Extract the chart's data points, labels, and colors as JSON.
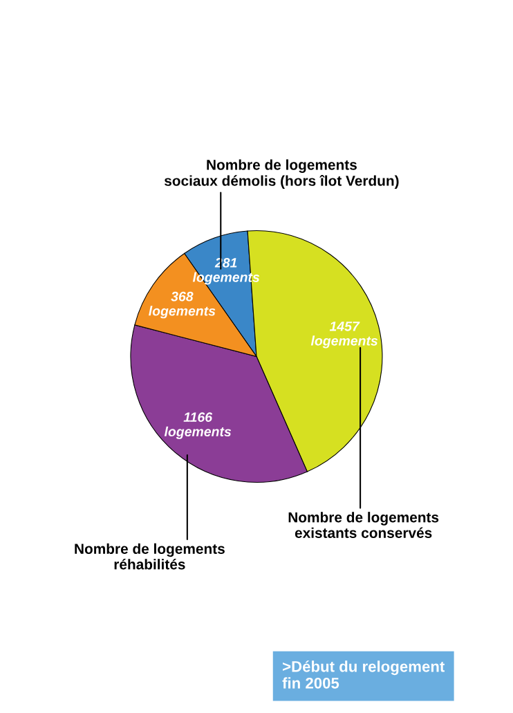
{
  "chart_data": {
    "type": "pie",
    "categories": [
      "Nombre de logements\nsociaux démolis (hors îlot Verdun)",
      "Nombre de logements\nexistants conservés",
      "Nombre de logements\nréhabilités",
      null
    ],
    "values": [
      281,
      1457,
      1166,
      368
    ],
    "colors": [
      "#3a87c8",
      "#d6e021",
      "#8b3d96",
      "#f39020"
    ],
    "value_labels": [
      "281\nlogements",
      "1457\nlogements",
      "1166\nlogements",
      "368\nlogements"
    ],
    "annotations": [
      ">Début du relogement\nfin 2005"
    ]
  }
}
